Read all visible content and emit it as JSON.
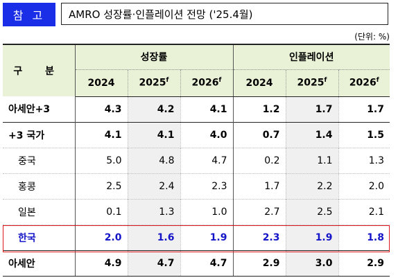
{
  "badge": "참 고",
  "title": "AMRO 성장률·인플레이션 전망 ('25.4월)",
  "unit": "(단위: %)",
  "header": {
    "gubun": "구 분",
    "growth": "성장률",
    "inflation": "인플레이션",
    "years": [
      "2024",
      "2025",
      "2026"
    ],
    "forecast_mark": "f"
  },
  "rows": [
    {
      "name": "아세안+3",
      "values": [
        "4.3",
        "4.2",
        "4.1",
        "1.2",
        "1.7",
        "1.7"
      ]
    },
    {
      "name": "+3 국가",
      "values": [
        "4.1",
        "4.1",
        "4.0",
        "0.7",
        "1.4",
        "1.5"
      ]
    },
    {
      "name": "중국",
      "values": [
        "5.0",
        "4.8",
        "4.7",
        "0.2",
        "1.1",
        "1.3"
      ]
    },
    {
      "name": "홍콩",
      "values": [
        "2.5",
        "2.4",
        "2.3",
        "1.7",
        "2.2",
        "2.0"
      ]
    },
    {
      "name": "일본",
      "values": [
        "0.1",
        "1.3",
        "1.0",
        "2.7",
        "2.5",
        "2.1"
      ]
    },
    {
      "name": "한국",
      "values": [
        "2.0",
        "1.6",
        "1.9",
        "2.3",
        "1.9",
        "1.8"
      ]
    },
    {
      "name": "아세안",
      "values": [
        "4.9",
        "4.7",
        "4.7",
        "2.9",
        "3.0",
        "2.9"
      ]
    }
  ],
  "colors": {
    "badge": "#1a2ee8",
    "header_bg": "#e9f2d6",
    "highlight_border": "#e0161d",
    "highlight_text": "#1414c8"
  }
}
